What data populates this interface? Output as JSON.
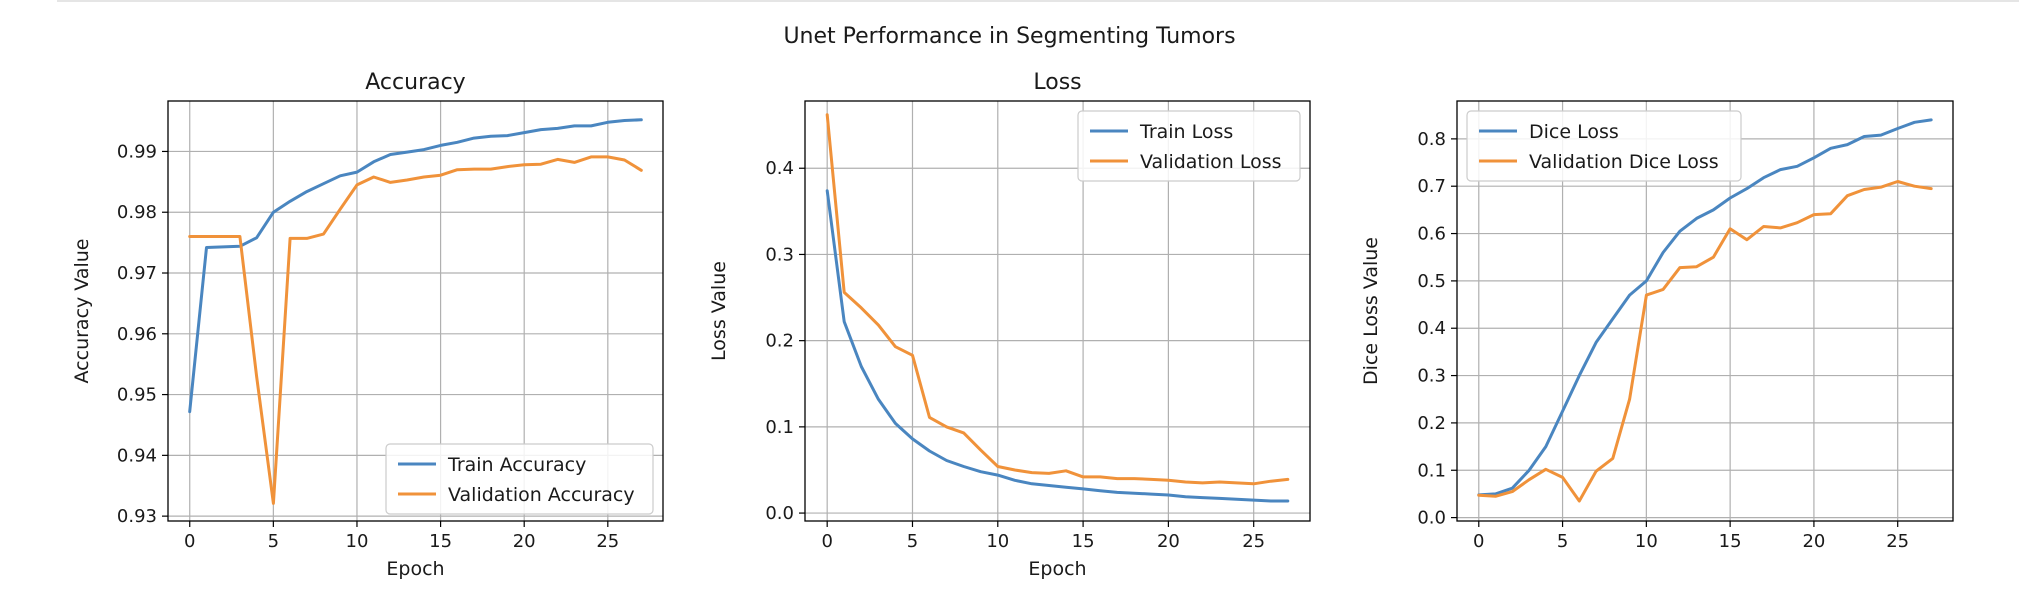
{
  "figure_title": "Unet Performance in Segmenting Tumors",
  "colors": {
    "train": "#4a86c0",
    "validation": "#f0923a",
    "grid": "#b0b0b0",
    "axis": "#000000"
  },
  "chart_data": [
    {
      "type": "line",
      "title": "Accuracy",
      "xlabel": "Epoch",
      "ylabel": "Accuracy Value",
      "xlim": [
        -1.3,
        28.3
      ],
      "ylim": [
        0.9292,
        0.9983
      ],
      "xticks": [
        0,
        5,
        10,
        15,
        20,
        25
      ],
      "yticks": [
        0.93,
        0.94,
        0.95,
        0.96,
        0.97,
        0.98,
        0.99
      ],
      "ytick_labels": [
        "0.93",
        "0.94",
        "0.95",
        "0.96",
        "0.97",
        "0.98",
        "0.99"
      ],
      "grid": true,
      "legend_position": "lower-right",
      "x": [
        0,
        1,
        2,
        3,
        4,
        5,
        6,
        7,
        8,
        9,
        10,
        11,
        12,
        13,
        14,
        15,
        16,
        17,
        18,
        19,
        20,
        21,
        22,
        23,
        24,
        25,
        26,
        27
      ],
      "series": [
        {
          "name": "Train Accuracy",
          "color": "#4a86c0",
          "values": [
            0.9472,
            0.9742,
            0.9743,
            0.9744,
            0.9758,
            0.98,
            0.9818,
            0.9834,
            0.9847,
            0.986,
            0.9866,
            0.9883,
            0.9895,
            0.9899,
            0.9903,
            0.991,
            0.9915,
            0.9922,
            0.9925,
            0.9926,
            0.9931,
            0.9936,
            0.9938,
            0.9942,
            0.9942,
            0.9948,
            0.9951,
            0.9952
          ]
        },
        {
          "name": "Validation Accuracy",
          "color": "#f0923a",
          "values": [
            0.976,
            0.976,
            0.976,
            0.976,
            0.953,
            0.9321,
            0.9757,
            0.9757,
            0.9764,
            0.9805,
            0.9845,
            0.9858,
            0.9849,
            0.9853,
            0.9858,
            0.9861,
            0.987,
            0.9871,
            0.9871,
            0.9875,
            0.9878,
            0.9879,
            0.9887,
            0.9882,
            0.9891,
            0.9891,
            0.9886,
            0.9869
          ]
        }
      ]
    },
    {
      "type": "line",
      "title": "Loss",
      "xlabel": "Epoch",
      "ylabel": "Loss Value",
      "xlim": [
        -1.3,
        28.3
      ],
      "ylim": [
        -0.0092,
        0.478
      ],
      "xticks": [
        0,
        5,
        10,
        15,
        20,
        25
      ],
      "yticks": [
        0.0,
        0.1,
        0.2,
        0.3,
        0.4
      ],
      "ytick_labels": [
        "0.0",
        "0.1",
        "0.2",
        "0.3",
        "0.4"
      ],
      "grid": true,
      "legend_position": "upper-right",
      "x": [
        0,
        1,
        2,
        3,
        4,
        5,
        6,
        7,
        8,
        9,
        10,
        11,
        12,
        13,
        14,
        15,
        16,
        17,
        18,
        19,
        20,
        21,
        22,
        23,
        24,
        25,
        26,
        27
      ],
      "series": [
        {
          "name": "Train Loss",
          "color": "#4a86c0",
          "values": [
            0.374,
            0.222,
            0.17,
            0.132,
            0.104,
            0.086,
            0.072,
            0.061,
            0.054,
            0.048,
            0.044,
            0.038,
            0.034,
            0.032,
            0.03,
            0.028,
            0.026,
            0.024,
            0.023,
            0.022,
            0.021,
            0.019,
            0.018,
            0.017,
            0.016,
            0.015,
            0.014,
            0.014
          ]
        },
        {
          "name": "Validation Loss",
          "color": "#f0923a",
          "values": [
            0.462,
            0.256,
            0.238,
            0.218,
            0.193,
            0.183,
            0.111,
            0.1,
            0.093,
            0.073,
            0.054,
            0.05,
            0.047,
            0.046,
            0.049,
            0.042,
            0.042,
            0.04,
            0.04,
            0.039,
            0.038,
            0.036,
            0.035,
            0.036,
            0.035,
            0.034,
            0.037,
            0.039
          ]
        }
      ]
    },
    {
      "type": "line",
      "title": "",
      "xlabel": "",
      "ylabel": "Dice Loss Value",
      "xlim": [
        -1.3,
        28.3
      ],
      "ylim": [
        -0.0072,
        0.88
      ],
      "xticks": [
        0,
        5,
        10,
        15,
        20,
        25
      ],
      "yticks": [
        0.0,
        0.1,
        0.2,
        0.3,
        0.4,
        0.5,
        0.6,
        0.7,
        0.8
      ],
      "ytick_labels": [
        "0.0",
        "0.1",
        "0.2",
        "0.3",
        "0.4",
        "0.5",
        "0.6",
        "0.7",
        "0.8"
      ],
      "grid": true,
      "legend_position": "upper-left",
      "x": [
        0,
        1,
        2,
        3,
        4,
        5,
        6,
        7,
        8,
        9,
        10,
        11,
        12,
        13,
        14,
        15,
        16,
        17,
        18,
        19,
        20,
        21,
        22,
        23,
        24,
        25,
        26,
        27
      ],
      "series": [
        {
          "name": "Dice Loss",
          "color": "#4a86c0",
          "values": [
            0.048,
            0.05,
            0.062,
            0.1,
            0.15,
            0.225,
            0.3,
            0.37,
            0.42,
            0.47,
            0.5,
            0.56,
            0.605,
            0.632,
            0.65,
            0.675,
            0.695,
            0.718,
            0.735,
            0.742,
            0.76,
            0.78,
            0.788,
            0.805,
            0.808,
            0.822,
            0.835,
            0.84
          ]
        },
        {
          "name": "Validation Dice Loss",
          "color": "#f0923a",
          "values": [
            0.047,
            0.045,
            0.055,
            0.08,
            0.102,
            0.085,
            0.035,
            0.098,
            0.125,
            0.25,
            0.47,
            0.482,
            0.528,
            0.53,
            0.55,
            0.61,
            0.587,
            0.615,
            0.612,
            0.623,
            0.64,
            0.642,
            0.68,
            0.693,
            0.698,
            0.71,
            0.7,
            0.695
          ]
        }
      ]
    }
  ]
}
